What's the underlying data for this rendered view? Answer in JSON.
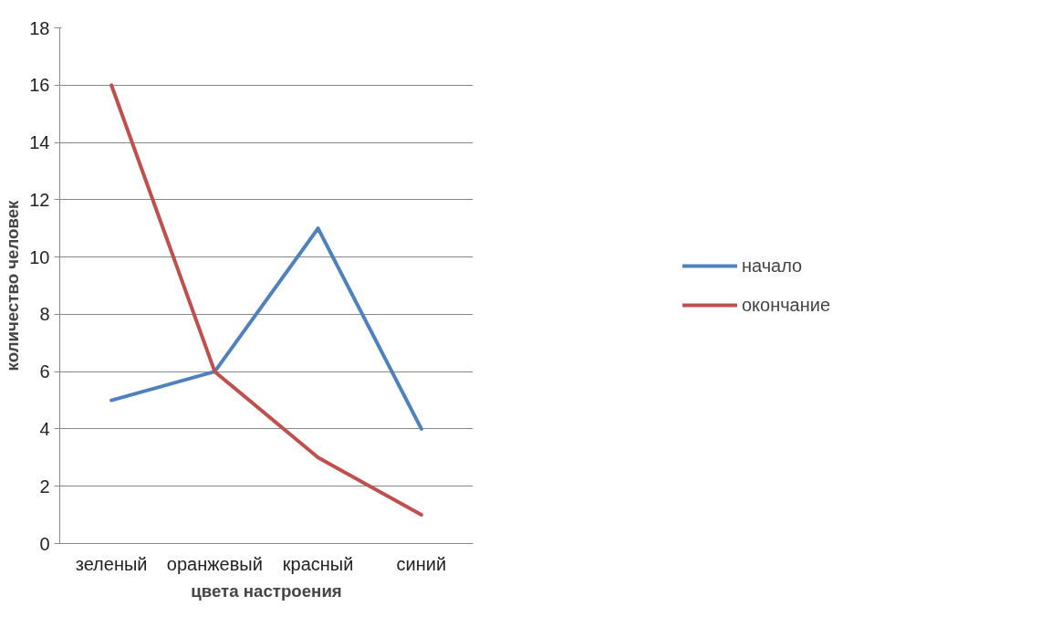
{
  "chart_data": {
    "type": "line",
    "xlabel": "цвета настроения",
    "ylabel": "количество человек",
    "categories": [
      "зеленый",
      "оранжевый",
      "красный",
      "синий"
    ],
    "series": [
      {
        "name": "начало",
        "color": "#4f81bd",
        "values": [
          5,
          6,
          11,
          4
        ]
      },
      {
        "name": "окончание",
        "color": "#c0504d",
        "values": [
          16,
          6,
          3,
          1
        ]
      }
    ],
    "ylim": [
      0,
      18
    ],
    "yticks": [
      0,
      2,
      4,
      6,
      8,
      10,
      12,
      14,
      16,
      18
    ],
    "grid": "y",
    "legend": "right",
    "marker": "none",
    "line_style": "solid"
  }
}
